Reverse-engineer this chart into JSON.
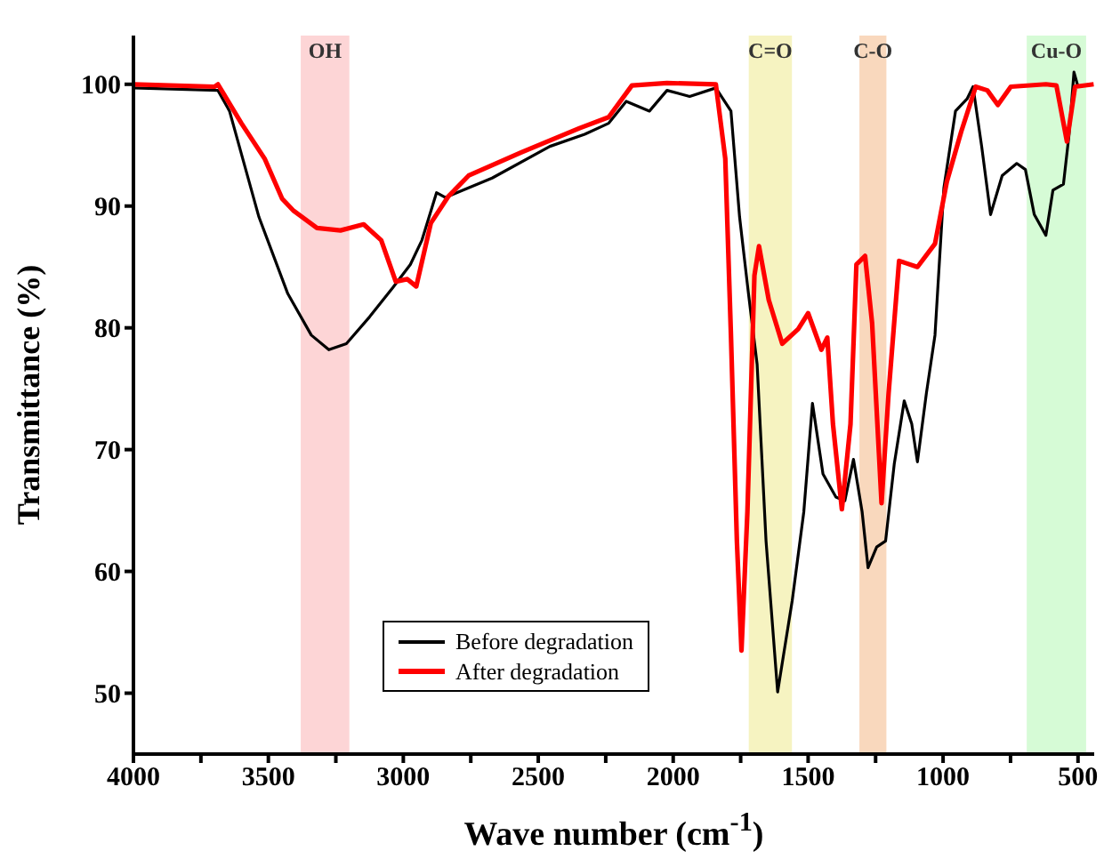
{
  "chart_data": {
    "type": "line",
    "xlabel": "Wave number (cm$^{-1}$)",
    "ylabel": "Transmittance (%)",
    "xlim": [
      4000,
      440
    ],
    "ylim": [
      45,
      104
    ],
    "xticks": [
      4000,
      {
        "value": 3750,
        "label": null
      },
      3500,
      {
        "value": 3250,
        "label": null
      },
      3000,
      {
        "value": 2750,
        "label": null
      },
      2500,
      {
        "value": 2250,
        "label": null
      },
      2000,
      {
        "value": 1750,
        "label": null
      },
      1500,
      {
        "value": 1250,
        "label": null
      },
      1000,
      {
        "value": 750,
        "label": null
      },
      500
    ],
    "yticks": [
      50,
      60,
      70,
      80,
      90,
      100
    ],
    "legend": "bottom left",
    "marker": "none",
    "line_style": "solid",
    "series": [
      {
        "name": "Before degradation",
        "color": "#000000",
        "x": [
          4000,
          3687,
          3644,
          3535,
          3428,
          3341,
          3276,
          3211,
          3125,
          3039,
          2974,
          2931,
          2877,
          2844,
          2671,
          2457,
          2328,
          2239,
          2174,
          2088,
          2023,
          1939,
          1842,
          1786,
          1754,
          1721,
          1689,
          1656,
          1613,
          1559,
          1516,
          1484,
          1445,
          1397,
          1364,
          1332,
          1300,
          1278,
          1246,
          1213,
          1181,
          1144,
          1116,
          1095,
          1062,
          1030,
          997,
          954,
          911,
          889,
          857,
          824,
          781,
          727,
          695,
          662,
          619,
          593,
          554,
          533,
          515,
          500
        ],
        "values": [
          99.7,
          99.5,
          97.8,
          89.1,
          82.8,
          79.4,
          78.2,
          78.7,
          80.9,
          83.3,
          85.2,
          87.2,
          91.1,
          90.7,
          92.3,
          94.9,
          95.9,
          96.8,
          98.6,
          97.8,
          99.5,
          99.0,
          99.7,
          97.8,
          89.1,
          82.8,
          77.0,
          62.5,
          50.1,
          57.6,
          64.9,
          73.8,
          68.0,
          66.1,
          65.8,
          69.2,
          64.9,
          60.3,
          62.0,
          62.5,
          68.8,
          74.0,
          72.1,
          69.0,
          74.6,
          79.4,
          91.5,
          97.8,
          98.8,
          99.8,
          94.9,
          89.3,
          92.5,
          93.5,
          93.0,
          89.3,
          87.6,
          91.3,
          91.8,
          95.9,
          101.0,
          99.8
        ]
      },
      {
        "name": "After degradation",
        "color": "#ff0000",
        "x": [
          4000,
          3700,
          3687,
          3600,
          3514,
          3449,
          3406,
          3320,
          3233,
          3147,
          3082,
          3028,
          2985,
          2952,
          2898,
          2833,
          2758,
          2563,
          2347,
          2239,
          2153,
          2023,
          1842,
          1807,
          1786,
          1764,
          1747,
          1725,
          1699,
          1682,
          1646,
          1596,
          1537,
          1500,
          1451,
          1429,
          1408,
          1375,
          1343,
          1321,
          1289,
          1263,
          1228,
          1202,
          1163,
          1095,
          1030,
          986,
          933,
          879,
          836,
          797,
          749,
          619,
          580,
          541,
          511,
          442
        ],
        "values": [
          100,
          99.8,
          100,
          96.8,
          93.9,
          90.6,
          89.6,
          88.2,
          88.0,
          88.5,
          87.2,
          83.8,
          84.0,
          83.4,
          88.6,
          90.8,
          92.5,
          94.4,
          96.4,
          97.3,
          99.9,
          100.1,
          100,
          93.9,
          79.4,
          62.5,
          53.5,
          64.9,
          84.3,
          86.7,
          82.3,
          78.7,
          79.9,
          81.2,
          78.2,
          79.2,
          72.1,
          65.1,
          72.1,
          85.2,
          85.9,
          80.4,
          65.6,
          74.6,
          85.5,
          85.0,
          86.9,
          92.0,
          96.1,
          99.8,
          99.5,
          98.3,
          99.8,
          100,
          99.9,
          95.3,
          99.8,
          100
        ]
      }
    ],
    "bands": [
      {
        "axis": "x",
        "from": 3380,
        "to": 3200,
        "label": "OH",
        "color": "#fdd5d6"
      },
      {
        "axis": "x",
        "from": 1720,
        "to": 1560,
        "label": "C=O",
        "color": "#f6f3c1"
      },
      {
        "axis": "x",
        "from": 1310,
        "to": 1210,
        "label": "C-O",
        "color": "#f9d8bd"
      },
      {
        "axis": "x",
        "from": 690,
        "to": 470,
        "label": "Cu-O",
        "color": "#d6fbd6"
      }
    ]
  }
}
